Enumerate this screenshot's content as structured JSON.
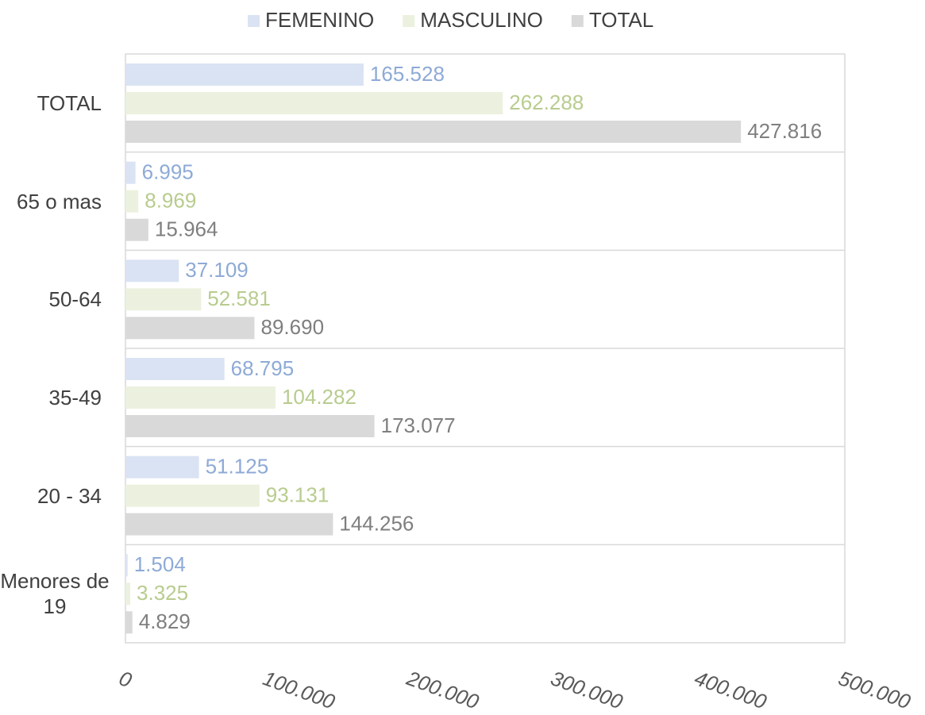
{
  "chart_data": {
    "type": "barh",
    "categories": [
      "TOTAL",
      "65 o mas",
      "50-64",
      "35-49",
      "20 - 34",
      "Menores de 19"
    ],
    "series": [
      {
        "name": "FEMENINO",
        "color": "#dae3f3",
        "label_color": "#8eaad6",
        "values": [
          165528,
          6995,
          37109,
          68795,
          51125,
          1504
        ],
        "value_labels": [
          "165.528",
          "6.995",
          "37.109",
          "68.795",
          "51.125",
          "1.504"
        ]
      },
      {
        "name": "MASCULINO",
        "color": "#ebf1de",
        "label_color": "#b8cc8e",
        "values": [
          262288,
          8969,
          52581,
          104282,
          93131,
          3325
        ],
        "value_labels": [
          "262.288",
          "8.969",
          "52.581",
          "104.282",
          "93.131",
          "3.325"
        ]
      },
      {
        "name": "TOTAL",
        "color": "#d9d9d9",
        "label_color": "#7f7f7f",
        "values": [
          427816,
          15964,
          89690,
          173077,
          144256,
          4829
        ],
        "value_labels": [
          "427.816",
          "15.964",
          "89.690",
          "173.077",
          "144.256",
          "4.829"
        ]
      }
    ],
    "xlim": [
      0,
      500000
    ],
    "xticks": [
      0,
      {
        "value": 100000,
        "label": "100.000"
      },
      {
        "value": 200000,
        "label": "200.000"
      },
      {
        "value": 300000,
        "label": "300.000"
      },
      {
        "value": 400000,
        "label": "400.000"
      },
      {
        "value": 500000,
        "label": "500.000"
      }
    ],
    "legend": "top"
  }
}
